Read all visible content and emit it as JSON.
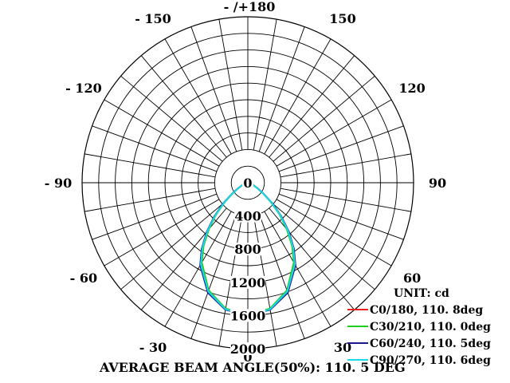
{
  "chart_data": {
    "type": "polar",
    "unit": "UNIT: cd",
    "angle_labels": [
      {
        "deg": 180,
        "text": "- /+180"
      },
      {
        "deg": 150,
        "text": "150"
      },
      {
        "deg": -150,
        "text": "- 150"
      },
      {
        "deg": 120,
        "text": "120"
      },
      {
        "deg": -120,
        "text": "- 120"
      },
      {
        "deg": 90,
        "text": "90"
      },
      {
        "deg": -90,
        "text": "- 90"
      },
      {
        "deg": 60,
        "text": "60"
      },
      {
        "deg": -60,
        "text": "- 60"
      },
      {
        "deg": 30,
        "text": "30"
      },
      {
        "deg": -30,
        "text": "- 30"
      },
      {
        "deg": 0,
        "text": "0"
      }
    ],
    "radial_axis": {
      "max": 2000,
      "ticks": [
        0,
        400,
        800,
        1200,
        1600,
        2000
      ],
      "tick_labels": [
        "0",
        "400",
        "800",
        "1200",
        "1600",
        "2000"
      ]
    },
    "series": [
      {
        "name": "C0/180, 110. 8deg",
        "color": "#e8201e",
        "angles": [
          -90,
          -80,
          -70,
          -60,
          -55,
          -50,
          -45,
          -40,
          -35,
          -30,
          -20,
          -10,
          0,
          10,
          20,
          30,
          35,
          40,
          45,
          50,
          55,
          60,
          70,
          80,
          90
        ],
        "values": [
          0,
          20,
          60,
          140,
          230,
          380,
          560,
          760,
          960,
          1140,
          1400,
          1550,
          1590,
          1550,
          1400,
          1140,
          960,
          760,
          560,
          380,
          230,
          140,
          60,
          20,
          0
        ]
      },
      {
        "name": "C30/210, 110. 0deg",
        "color": "#22cc22",
        "angles": [
          -90,
          -80,
          -70,
          -60,
          -55,
          -50,
          -45,
          -40,
          -35,
          -30,
          -20,
          -10,
          0,
          10,
          20,
          30,
          35,
          40,
          45,
          50,
          55,
          60,
          70,
          80,
          90
        ],
        "values": [
          0,
          20,
          55,
          130,
          220,
          360,
          540,
          730,
          930,
          1110,
          1380,
          1540,
          1590,
          1540,
          1380,
          1110,
          930,
          730,
          540,
          360,
          220,
          130,
          55,
          20,
          0
        ]
      },
      {
        "name": "C60/240, 110. 5deg",
        "color": "#1a1a8c",
        "angles": [
          -90,
          -80,
          -70,
          -60,
          -55,
          -50,
          -45,
          -40,
          -35,
          -30,
          -20,
          -10,
          0,
          10,
          20,
          30,
          35,
          40,
          45,
          50,
          55,
          60,
          70,
          80,
          90
        ],
        "values": [
          0,
          20,
          60,
          140,
          235,
          390,
          570,
          770,
          970,
          1150,
          1410,
          1555,
          1595,
          1555,
          1410,
          1150,
          970,
          770,
          570,
          390,
          235,
          140,
          60,
          20,
          0
        ]
      },
      {
        "name": "C90/270, 110. 6deg",
        "color": "#19d8e8",
        "angles": [
          -90,
          -80,
          -70,
          -60,
          -55,
          -50,
          -45,
          -40,
          -35,
          -30,
          -20,
          -10,
          0,
          10,
          20,
          30,
          35,
          40,
          45,
          50,
          55,
          60,
          70,
          80,
          90
        ],
        "values": [
          0,
          20,
          58,
          135,
          228,
          375,
          555,
          755,
          955,
          1135,
          1395,
          1548,
          1600,
          1548,
          1395,
          1135,
          955,
          755,
          555,
          375,
          228,
          135,
          58,
          20,
          0
        ]
      }
    ],
    "footer": "AVERAGE BEAM ANGLE(50%): 110. 5 DEG",
    "grid": true,
    "legend_position": "bottom-right"
  }
}
